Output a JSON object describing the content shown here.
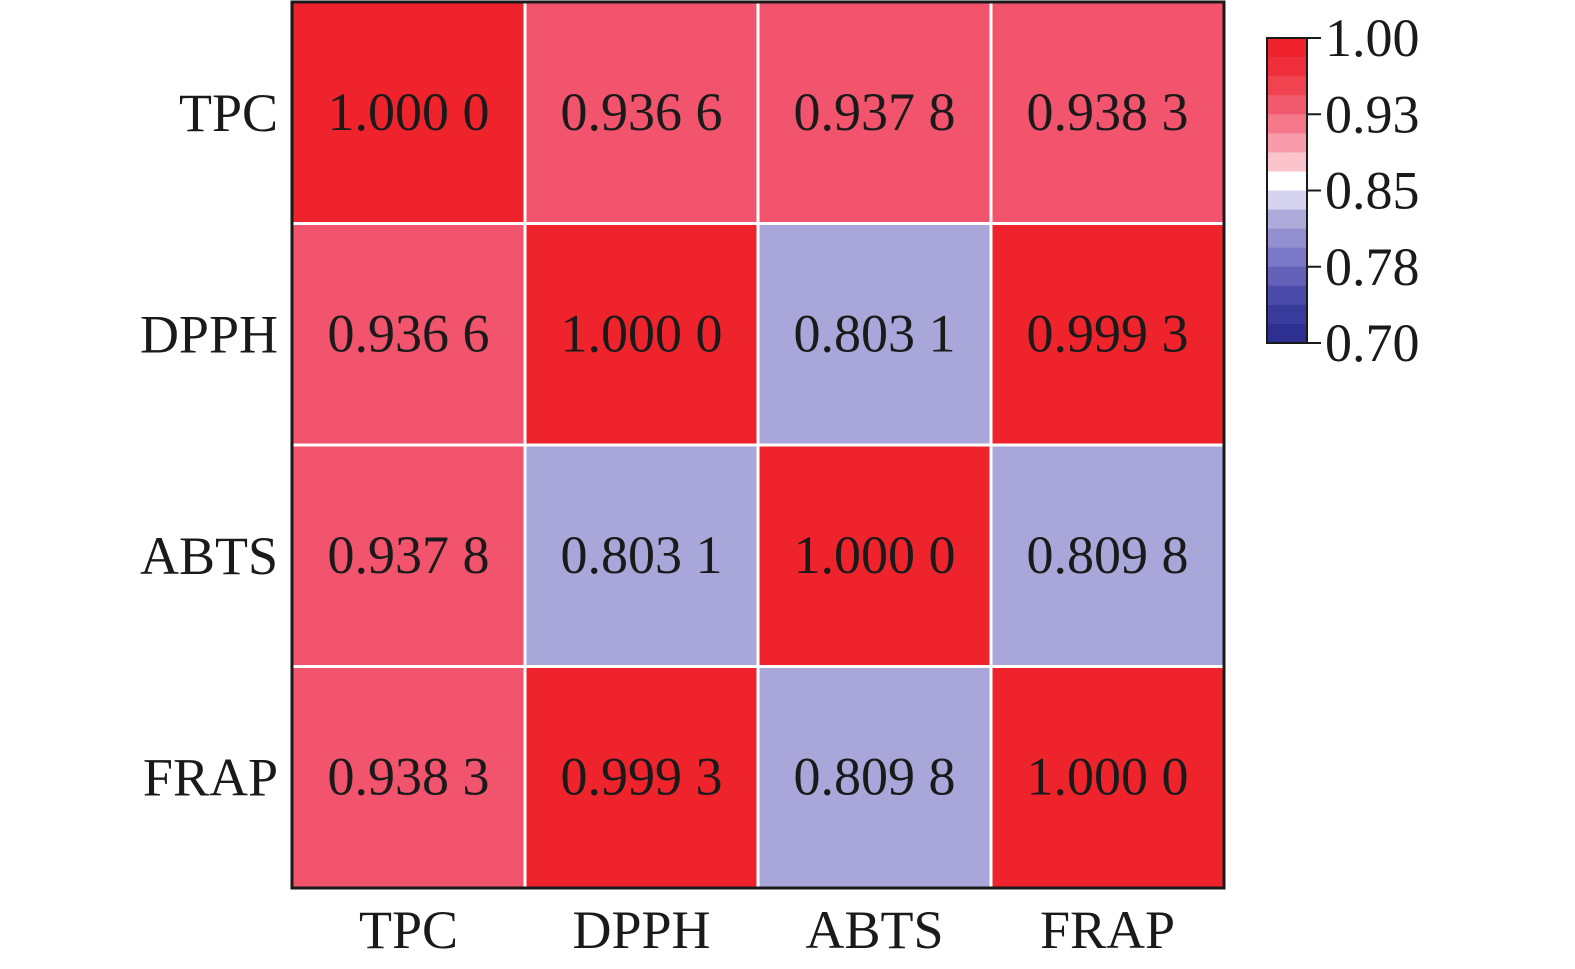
{
  "chart_data": {
    "type": "heatmap",
    "title": "",
    "xlabel": "",
    "ylabel": "",
    "rows": [
      "TPC",
      "DPPH",
      "ABTS",
      "FRAP"
    ],
    "columns": [
      "TPC",
      "DPPH",
      "ABTS",
      "FRAP"
    ],
    "values": [
      [
        1.0,
        0.9366,
        0.9378,
        0.9383
      ],
      [
        0.9366,
        1.0,
        0.8031,
        0.9993
      ],
      [
        0.9378,
        0.8031,
        1.0,
        0.8098
      ],
      [
        0.9383,
        0.9993,
        0.8098,
        1.0
      ]
    ],
    "cell_labels": [
      [
        "1.000 0",
        "0.936 6",
        "0.937 8",
        "0.938 3"
      ],
      [
        "0.936 6",
        "1.000 0",
        "0.803 1",
        "0.999 3"
      ],
      [
        "0.937 8",
        "0.803 1",
        "1.000 0",
        "0.809 8"
      ],
      [
        "0.938 3",
        "0.999 3",
        "0.809 8",
        "1.000 0"
      ]
    ],
    "cell_colors": [
      [
        "#ee232c",
        "#f1546c",
        "#f1546c",
        "#f1546c"
      ],
      [
        "#f1546c",
        "#ee232c",
        "#a9a6da",
        "#ee232c"
      ],
      [
        "#f1546c",
        "#a9a6da",
        "#ee232c",
        "#a9a6da"
      ],
      [
        "#f1546c",
        "#ee232c",
        "#a9a6da",
        "#ee232c"
      ]
    ],
    "colorbar": {
      "range": [
        0.7,
        1.0
      ],
      "ticks": [
        {
          "value": 1.0,
          "label": "1.00"
        },
        {
          "value": 0.925,
          "label": "0.93"
        },
        {
          "value": 0.85,
          "label": "0.85"
        },
        {
          "value": 0.775,
          "label": "0.78"
        },
        {
          "value": 0.7,
          "label": "0.70"
        }
      ],
      "bands": [
        "#ee232c",
        "#ef2e3c",
        "#f0434f",
        "#f15a6e",
        "#f4788a",
        "#f89bab",
        "#fbc3cc",
        "#ffffff",
        "#d5d3ee",
        "#aeabdb",
        "#9290cf",
        "#7a78c6",
        "#6261b7",
        "#4a4ba8",
        "#393b9c",
        "#2d3090"
      ],
      "position": "right"
    }
  }
}
